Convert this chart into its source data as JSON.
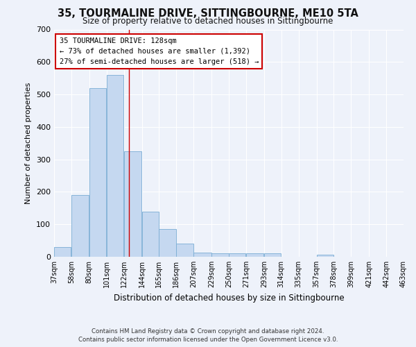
{
  "title": "35, TOURMALINE DRIVE, SITTINGBOURNE, ME10 5TA",
  "subtitle": "Size of property relative to detached houses in Sittingbourne",
  "xlabel": "Distribution of detached houses by size in Sittingbourne",
  "ylabel": "Number of detached properties",
  "footer_line1": "Contains HM Land Registry data © Crown copyright and database right 2024.",
  "footer_line2": "Contains public sector information licensed under the Open Government Licence v3.0.",
  "annotation_title": "35 TOURMALINE DRIVE: 128sqm",
  "annotation_line1": "← 73% of detached houses are smaller (1,392)",
  "annotation_line2": "27% of semi-detached houses are larger (518) →",
  "property_size": 128,
  "bar_color": "#c5d8f0",
  "bar_edge_color": "#7aadd4",
  "vline_color": "#cc0000",
  "background_color": "#eef2fa",
  "axes_background": "#eef2fa",
  "grid_color": "#ffffff",
  "annotation_box_color": "#ffffff",
  "annotation_box_edge": "#cc0000",
  "bin_edges": [
    37,
    58,
    80,
    101,
    122,
    144,
    165,
    186,
    207,
    229,
    250,
    271,
    293,
    314,
    335,
    357,
    378,
    399,
    421,
    442,
    463
  ],
  "bin_labels": [
    "37sqm",
    "58sqm",
    "80sqm",
    "101sqm",
    "122sqm",
    "144sqm",
    "165sqm",
    "186sqm",
    "207sqm",
    "229sqm",
    "250sqm",
    "271sqm",
    "293sqm",
    "314sqm",
    "335sqm",
    "357sqm",
    "378sqm",
    "399sqm",
    "421sqm",
    "442sqm",
    "463sqm"
  ],
  "counts": [
    30,
    190,
    520,
    560,
    325,
    140,
    86,
    40,
    13,
    10,
    10,
    10,
    10,
    0,
    0,
    6,
    0,
    0,
    0,
    0
  ],
  "ylim": [
    0,
    700
  ],
  "yticks": [
    0,
    100,
    200,
    300,
    400,
    500,
    600,
    700
  ]
}
